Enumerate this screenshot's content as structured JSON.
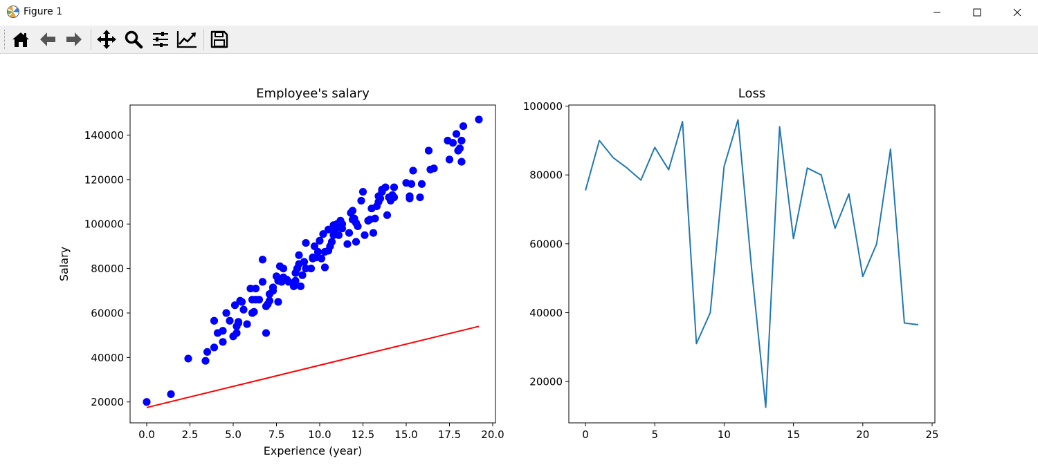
{
  "window": {
    "title": "Figure 1",
    "app_icon": "matplotlib-icon",
    "controls": [
      "minimize-icon",
      "maximize-icon",
      "close-icon"
    ]
  },
  "toolbar": {
    "buttons": [
      {
        "name": "home-icon",
        "tooltip": "Reset original view"
      },
      {
        "name": "back-arrow-icon",
        "tooltip": "Back to previous view"
      },
      {
        "name": "forward-arrow-icon",
        "tooltip": "Forward to next view"
      },
      {
        "name": "pan-icon",
        "tooltip": "Pan axes"
      },
      {
        "name": "zoom-icon",
        "tooltip": "Zoom to rectangle"
      },
      {
        "name": "subplots-icon",
        "tooltip": "Configure subplots"
      },
      {
        "name": "edit-axis-icon",
        "tooltip": "Edit axis"
      },
      {
        "name": "save-icon",
        "tooltip": "Save the figure"
      }
    ]
  },
  "chart_data": [
    {
      "type": "scatter",
      "title": "Employee's salary",
      "xlabel": "Experience (year)",
      "ylabel": "Salary",
      "xlim": [
        -0.96,
        20.16
      ],
      "ylim": [
        10600,
        153500
      ],
      "xticks": [
        0.0,
        2.5,
        5.0,
        7.5,
        10.0,
        12.5,
        15.0,
        17.5,
        20.0
      ],
      "xtick_labels": [
        "0.0",
        "2.5",
        "5.0",
        "7.5",
        "10.0",
        "12.5",
        "15.0",
        "17.5",
        "20.0"
      ],
      "yticks": [
        20000,
        40000,
        60000,
        80000,
        100000,
        120000,
        140000
      ],
      "ytick_labels": [
        "20000",
        "40000",
        "60000",
        "80000",
        "100000",
        "120000",
        "140000"
      ],
      "grid": false,
      "marker_color": "#0000ff",
      "line_color": "#ff0000",
      "series": [
        {
          "kind": "points",
          "x": [
            0.0,
            1.4,
            2.4,
            3.4,
            3.5,
            3.9,
            3.9,
            4.1,
            4.4,
            4.4,
            4.6,
            4.8,
            5.0,
            5.1,
            5.2,
            5.2,
            5.3,
            5.3,
            5.4,
            5.5,
            5.6,
            5.8,
            6.0,
            6.1,
            6.1,
            6.2,
            6.3,
            6.3,
            6.5,
            6.7,
            6.7,
            6.9,
            6.9,
            7.0,
            7.1,
            7.1,
            7.3,
            7.3,
            7.5,
            7.6,
            7.6,
            7.7,
            7.8,
            7.9,
            7.9,
            8.1,
            8.2,
            8.5,
            8.6,
            8.6,
            8.7,
            8.8,
            8.8,
            8.9,
            9.0,
            9.1,
            9.2,
            9.2,
            9.5,
            9.6,
            9.6,
            9.7,
            9.8,
            9.9,
            10.0,
            10.1,
            10.2,
            10.3,
            10.3,
            10.5,
            10.5,
            10.6,
            10.7,
            10.8,
            10.8,
            10.9,
            11.0,
            11.1,
            11.2,
            11.3,
            11.3,
            11.6,
            11.7,
            11.8,
            11.9,
            11.9,
            12.0,
            12.1,
            12.1,
            12.2,
            12.4,
            12.5,
            12.6,
            12.8,
            12.9,
            13.0,
            13.1,
            13.2,
            13.3,
            13.4,
            13.4,
            13.5,
            13.6,
            13.6,
            13.8,
            13.9,
            14.0,
            14.1,
            14.2,
            14.3,
            14.3,
            15.0,
            15.2,
            15.2,
            15.3,
            15.4,
            15.8,
            15.9,
            16.3,
            16.4,
            16.6,
            17.4,
            17.5,
            17.7,
            17.9,
            18.0,
            18.1,
            18.2,
            18.2,
            18.3,
            19.2
          ],
          "y": [
            20000,
            23500,
            39500,
            38500,
            42500,
            44500,
            56500,
            51000,
            52000,
            47000,
            60000,
            56500,
            49500,
            63500,
            51000,
            54000,
            55500,
            56000,
            65500,
            65000,
            61500,
            55000,
            71000,
            60000,
            66000,
            60500,
            66000,
            71000,
            66000,
            74000,
            84000,
            51000,
            63000,
            64000,
            68500,
            65500,
            70000,
            71500,
            76500,
            74500,
            65000,
            81000,
            74000,
            76000,
            80000,
            75000,
            74000,
            72000,
            74500,
            78000,
            80000,
            82000,
            86000,
            72000,
            77000,
            83000,
            80000,
            91500,
            80000,
            85000,
            84500,
            90000,
            85000,
            87500,
            92500,
            84500,
            95500,
            87500,
            80500,
            97500,
            88000,
            90000,
            92000,
            95000,
            99500,
            97500,
            100000,
            95000,
            101500,
            98000,
            100000,
            91000,
            96000,
            105000,
            102000,
            106000,
            102500,
            92000,
            100500,
            99000,
            110500,
            114500,
            95000,
            101500,
            102000,
            107000,
            96000,
            102500,
            108000,
            110000,
            112500,
            111500,
            114500,
            115500,
            116500,
            104000,
            112000,
            110500,
            113000,
            112000,
            116500,
            118500,
            112500,
            111500,
            118000,
            124000,
            112000,
            118000,
            133000,
            124500,
            125000,
            137500,
            129000,
            136500,
            140500,
            133000,
            134000,
            137500,
            128000,
            144000,
            147000
          ]
        },
        {
          "kind": "line",
          "x": [
            0.0,
            19.2
          ],
          "y": [
            17500,
            54000
          ]
        }
      ]
    },
    {
      "type": "line",
      "title": "Loss",
      "xlabel": "",
      "ylabel": "",
      "xlim": [
        -1.2,
        25.2
      ],
      "ylim": [
        8000,
        100300
      ],
      "xticks": [
        0,
        5,
        10,
        15,
        20,
        25
      ],
      "xtick_labels": [
        "0",
        "5",
        "10",
        "15",
        "20",
        "25"
      ],
      "yticks": [
        20000,
        40000,
        60000,
        80000,
        100000
      ],
      "ytick_labels": [
        "20000",
        "40000",
        "60000",
        "80000",
        "100000"
      ],
      "grid": false,
      "line_color": "#1f77b4",
      "series": [
        {
          "x": [
            0,
            1,
            2,
            3,
            4,
            5,
            6,
            7,
            8,
            9,
            10,
            11,
            12,
            13,
            14,
            15,
            16,
            17,
            18,
            19,
            20,
            21,
            22,
            23,
            24
          ],
          "values": [
            75500,
            90000,
            85000,
            82000,
            78500,
            88000,
            81500,
            95500,
            31000,
            40000,
            82500,
            96000,
            52000,
            12500,
            94000,
            61500,
            82000,
            80000,
            64500,
            74500,
            50500,
            60000,
            87500,
            37000,
            36500
          ]
        }
      ]
    }
  ]
}
